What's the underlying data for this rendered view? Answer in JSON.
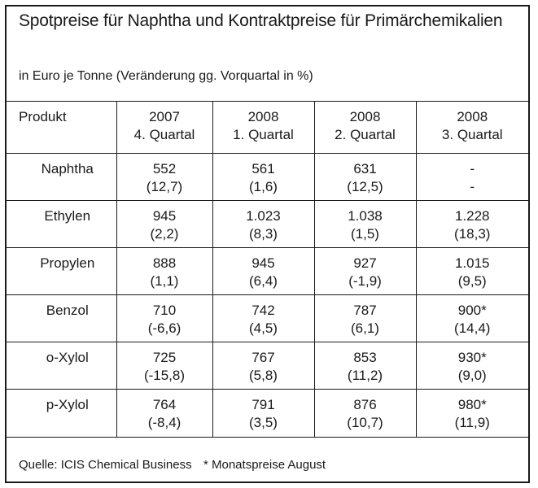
{
  "title": "Spotpreise für Naphtha und Kontraktpreise für Primärchemikalien",
  "subtitle": "in Euro je Tonne (Veränderung gg. Vorquartal in %)",
  "table": {
    "header": {
      "product_label": "Produkt",
      "columns": [
        {
          "year": "2007",
          "quarter": "4. Quartal"
        },
        {
          "year": "2008",
          "quarter": "1. Quartal"
        },
        {
          "year": "2008",
          "quarter": "2. Quartal"
        },
        {
          "year": "2008",
          "quarter": "3. Quartal"
        }
      ]
    },
    "rows": [
      {
        "product": "Naphtha",
        "cells": [
          {
            "value": "552",
            "change": "(12,7)"
          },
          {
            "value": "561",
            "change": "(1,6)"
          },
          {
            "value": "631",
            "change": "(12,5)"
          },
          {
            "value": "-",
            "change": "-"
          }
        ]
      },
      {
        "product": "Ethylen",
        "cells": [
          {
            "value": "945",
            "change": "(2,2)"
          },
          {
            "value": "1.023",
            "change": "(8,3)"
          },
          {
            "value": "1.038",
            "change": "(1,5)"
          },
          {
            "value": "1.228",
            "change": "(18,3)"
          }
        ]
      },
      {
        "product": "Propylen",
        "cells": [
          {
            "value": "888",
            "change": "(1,1)"
          },
          {
            "value": "945",
            "change": "(6,4)"
          },
          {
            "value": "927",
            "change": "(-1,9)"
          },
          {
            "value": "1.015",
            "change": "(9,5)"
          }
        ]
      },
      {
        "product": "Benzol",
        "cells": [
          {
            "value": "710",
            "change": "(-6,6)"
          },
          {
            "value": "742",
            "change": "(4,5)"
          },
          {
            "value": "787",
            "change": "(6,1)"
          },
          {
            "value": "900*",
            "change": "(14,4)"
          }
        ]
      },
      {
        "product": "o-Xylol",
        "cells": [
          {
            "value": "725",
            "change": "(-15,8)"
          },
          {
            "value": "767",
            "change": "(5,8)"
          },
          {
            "value": "853",
            "change": "(11,2)"
          },
          {
            "value": "930*",
            "change": "(9,0)"
          }
        ]
      },
      {
        "product": "p-Xylol",
        "cells": [
          {
            "value": "764",
            "change": "(-8,4)"
          },
          {
            "value": "791",
            "change": "(3,5)"
          },
          {
            "value": "876",
            "change": "(10,7)"
          },
          {
            "value": "980*",
            "change": "(11,9)"
          }
        ]
      }
    ]
  },
  "footer": {
    "source": "Quelle: ICIS Chemical Business",
    "note": "* Monatspreise August"
  }
}
